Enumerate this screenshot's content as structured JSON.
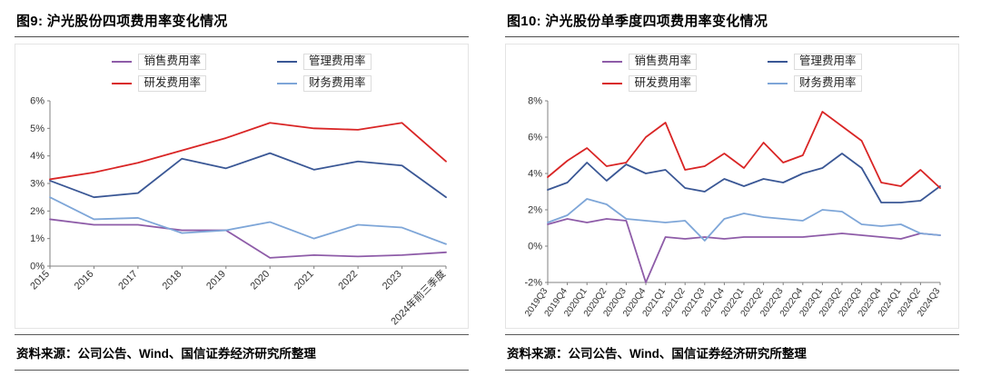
{
  "panels": [
    {
      "title": "图9: 沪光股份四项费用率变化情况",
      "source": "资料来源：公司公告、Wind、国信证券经济研究所整理"
    },
    {
      "title": "图10: 沪光股份单季度四项费用率变化情况",
      "source": "资料来源：公司公告、Wind、国信证券经济研究所整理"
    }
  ],
  "colors": {
    "sales": "#8E5CA8",
    "admin": "#3A5795",
    "rd": "#D92525",
    "finance": "#7EA6D8",
    "axis": "#808080",
    "tick_text": "#333333"
  },
  "chart_data": [
    {
      "type": "line",
      "title": "沪光股份四项费用率变化情况",
      "categories": [
        "2015",
        "2016",
        "2017",
        "2018",
        "2019",
        "2020",
        "2021",
        "2022",
        "2023",
        "2024年前三季度"
      ],
      "series": [
        {
          "name": "销售费用率",
          "color": "#8E5CA8",
          "values": [
            1.7,
            1.5,
            1.5,
            1.3,
            1.3,
            0.3,
            0.4,
            0.35,
            0.4,
            0.5
          ]
        },
        {
          "name": "管理费用率",
          "color": "#3A5795",
          "values": [
            3.1,
            2.5,
            2.65,
            3.9,
            3.55,
            4.1,
            3.5,
            3.8,
            3.65,
            2.5
          ]
        },
        {
          "name": "研发费用率",
          "color": "#D92525",
          "values": [
            3.15,
            3.4,
            3.75,
            4.2,
            4.65,
            5.2,
            5.0,
            4.95,
            5.2,
            3.8
          ]
        },
        {
          "name": "财务费用率",
          "color": "#7EA6D8",
          "values": [
            2.5,
            1.7,
            1.75,
            1.2,
            1.3,
            1.6,
            1.0,
            1.5,
            1.4,
            0.8
          ]
        }
      ],
      "ylim": [
        0,
        6
      ],
      "ytick_values": [
        0,
        1,
        2,
        3,
        4,
        5,
        6
      ],
      "ytick_labels": [
        "0%",
        "1%",
        "2%",
        "3%",
        "4%",
        "5%",
        "6%"
      ],
      "grid": false,
      "legend_position": "top"
    },
    {
      "type": "line",
      "title": "沪光股份单季度四项费用率变化情况",
      "categories": [
        "2019Q3",
        "2019Q4",
        "2020Q1",
        "2020Q2",
        "2020Q3",
        "2020Q4",
        "2021Q1",
        "2021Q2",
        "2021Q3",
        "2021Q4",
        "2022Q1",
        "2022Q2",
        "2022Q3",
        "2022Q4",
        "2023Q1",
        "2023Q2",
        "2023Q3",
        "2023Q4",
        "2024Q1",
        "2024Q2",
        "2024Q3"
      ],
      "series": [
        {
          "name": "销售费用率",
          "color": "#8E5CA8",
          "values": [
            1.2,
            1.5,
            1.3,
            1.5,
            1.4,
            -2.0,
            0.5,
            0.4,
            0.5,
            0.4,
            0.5,
            0.5,
            0.5,
            0.5,
            0.6,
            0.7,
            0.6,
            0.5,
            0.4,
            0.7,
            0.6
          ]
        },
        {
          "name": "管理费用率",
          "color": "#3A5795",
          "values": [
            3.1,
            3.5,
            4.6,
            3.6,
            4.5,
            4.0,
            4.2,
            3.2,
            3.0,
            3.7,
            3.3,
            3.7,
            3.5,
            4.0,
            4.3,
            5.1,
            4.3,
            2.4,
            2.4,
            2.5,
            3.3
          ]
        },
        {
          "name": "研发费用率",
          "color": "#D92525",
          "values": [
            3.8,
            4.7,
            5.4,
            4.4,
            4.6,
            6.0,
            6.8,
            4.2,
            4.4,
            5.1,
            4.3,
            5.7,
            4.6,
            5.0,
            7.4,
            6.6,
            5.8,
            3.5,
            3.3,
            4.2,
            3.2
          ]
        },
        {
          "name": "财务费用率",
          "color": "#7EA6D8",
          "values": [
            1.3,
            1.7,
            2.6,
            2.3,
            1.5,
            1.4,
            1.3,
            1.4,
            0.3,
            1.5,
            1.8,
            1.6,
            1.5,
            1.4,
            2.0,
            1.9,
            1.2,
            1.1,
            1.2,
            0.7,
            0.6
          ]
        }
      ],
      "ylim": [
        -2,
        8
      ],
      "ytick_values": [
        -2,
        0,
        2,
        4,
        6,
        8
      ],
      "ytick_labels": [
        "-2%",
        "0%",
        "2%",
        "4%",
        "6%",
        "8%"
      ],
      "grid": false,
      "legend_position": "top"
    }
  ]
}
